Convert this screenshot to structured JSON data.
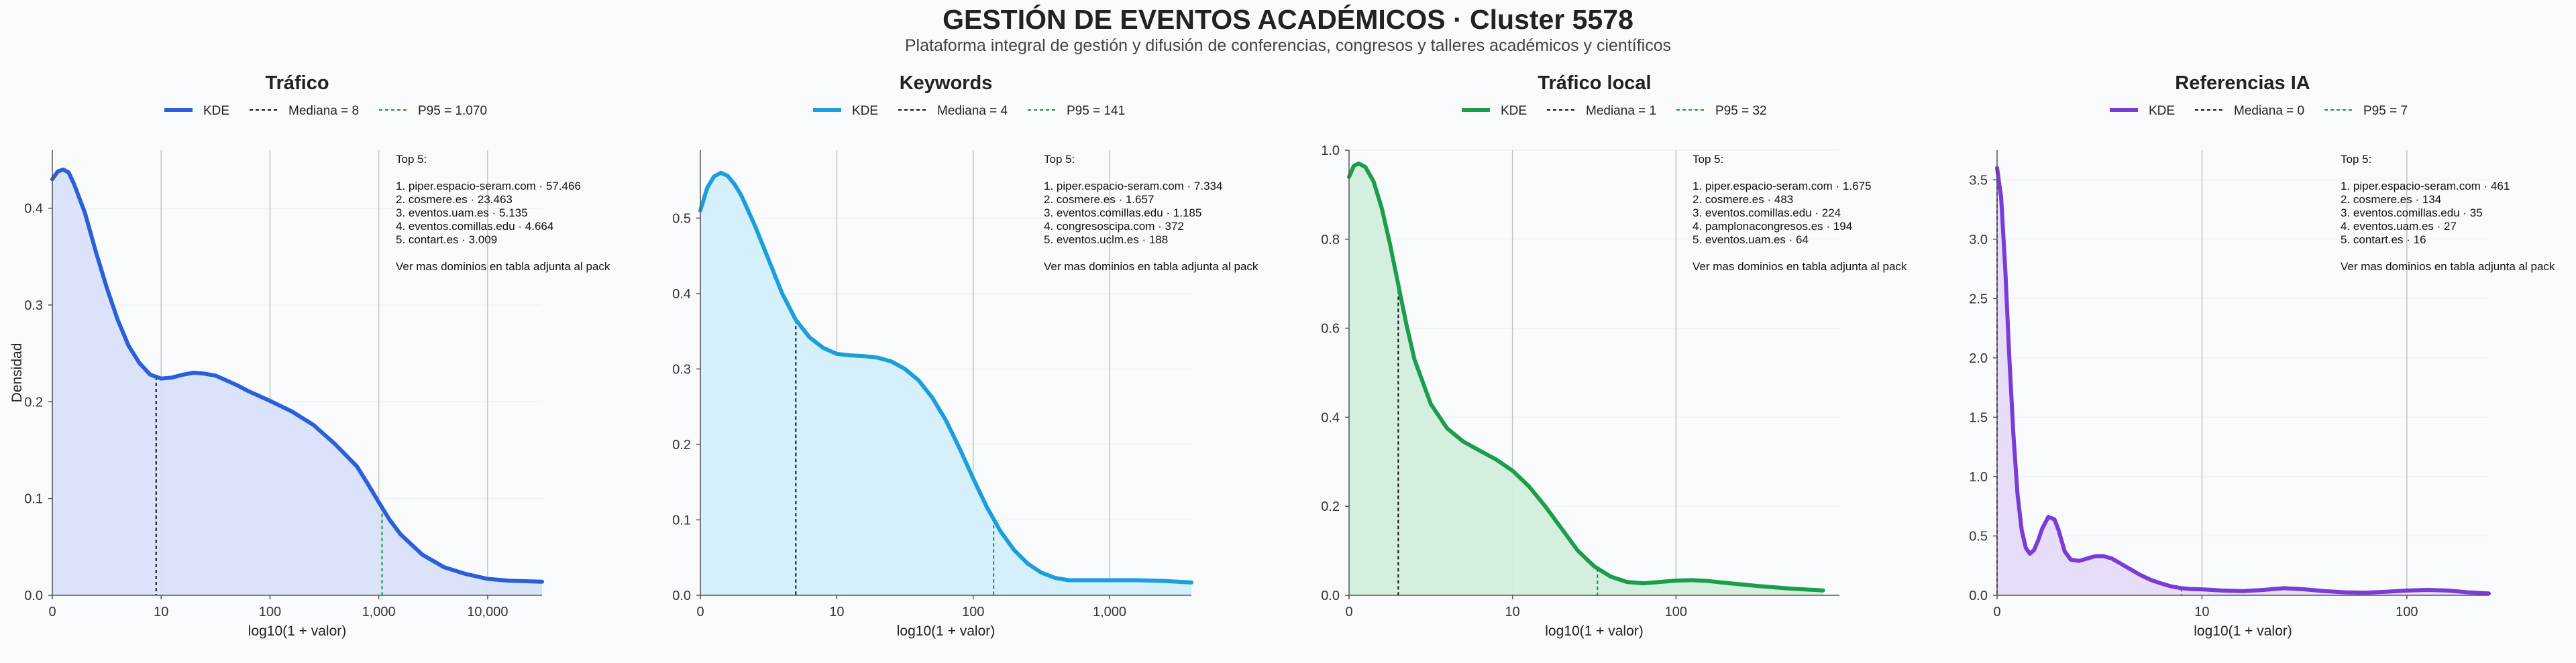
{
  "header": {
    "title": "GESTIÓN DE EVENTOS ACADÉMICOS · Cluster 5578",
    "subtitle": "Plataforma integral de gestión y difusión de conferencias, congresos y talleres académicos y científicos"
  },
  "chart_data": [
    {
      "type": "area",
      "title": "Tráfico",
      "xlabel": "log10(1 + valor)",
      "ylabel": "Densidad",
      "color": "#2b5fd9",
      "fill": "#d8e2fa",
      "xlim": [
        0,
        4.5
      ],
      "ylim": [
        0,
        0.46
      ],
      "xticks": [
        0,
        1,
        2,
        3,
        4
      ],
      "xtick_labels": [
        "0",
        "10",
        "100",
        "1,000",
        "10,000"
      ],
      "yticks": [
        0,
        0.1,
        0.2,
        0.3,
        0.4
      ],
      "ytick_labels": [
        "0.0",
        "0.1",
        "0.2",
        "0.3",
        "0.4"
      ],
      "series": [
        {
          "name": "KDE",
          "x": [
            0,
            0.05,
            0.1,
            0.15,
            0.2,
            0.3,
            0.4,
            0.5,
            0.6,
            0.7,
            0.8,
            0.9,
            1.0,
            1.1,
            1.2,
            1.3,
            1.4,
            1.5,
            1.6,
            1.7,
            1.8,
            1.9,
            2.0,
            2.2,
            2.4,
            2.6,
            2.8,
            2.9,
            3.0,
            3.1,
            3.2,
            3.4,
            3.6,
            3.8,
            4.0,
            4.2,
            4.5
          ],
          "y": [
            0.43,
            0.438,
            0.44,
            0.437,
            0.425,
            0.395,
            0.355,
            0.318,
            0.285,
            0.258,
            0.24,
            0.228,
            0.224,
            0.225,
            0.228,
            0.23,
            0.229,
            0.227,
            0.222,
            0.217,
            0.211,
            0.206,
            0.201,
            0.19,
            0.176,
            0.156,
            0.133,
            0.115,
            0.096,
            0.078,
            0.063,
            0.042,
            0.029,
            0.022,
            0.017,
            0.015,
            0.014
          ]
        }
      ],
      "legend": [
        {
          "label": "KDE",
          "style": "solid"
        },
        {
          "label": "Mediana = 8",
          "style": "dash-black"
        },
        {
          "label": "P95 = 1.070",
          "style": "dash-green"
        }
      ],
      "median_x": 0.954,
      "p95_x": 3.03,
      "annotation": [
        "Top 5:",
        "",
        "1. piper.espacio-seram.com · 57.466",
        "2. cosmere.es · 23.463",
        "3. eventos.uam.es · 5.135",
        "4. eventos.comillas.edu · 4.664",
        "5. contart.es · 3.009",
        "",
        "Ver mas dominios en tabla adjunta al pack"
      ]
    },
    {
      "type": "area",
      "title": "Keywords",
      "xlabel": "log10(1 + valor)",
      "ylabel": "",
      "color": "#1a9fdb",
      "fill": "#d3eefb",
      "xlim": [
        0,
        3.6
      ],
      "ylim": [
        0,
        0.59
      ],
      "xticks": [
        0,
        1,
        2,
        3
      ],
      "xtick_labels": [
        "0",
        "10",
        "100",
        "1,000"
      ],
      "yticks": [
        0,
        0.1,
        0.2,
        0.3,
        0.4,
        0.5
      ],
      "ytick_labels": [
        "0.0",
        "0.1",
        "0.2",
        "0.3",
        "0.4",
        "0.5"
      ],
      "series": [
        {
          "name": "KDE",
          "x": [
            0,
            0.05,
            0.1,
            0.15,
            0.2,
            0.25,
            0.3,
            0.4,
            0.5,
            0.6,
            0.7,
            0.8,
            0.9,
            1.0,
            1.1,
            1.2,
            1.3,
            1.4,
            1.5,
            1.6,
            1.7,
            1.8,
            1.9,
            2.0,
            2.1,
            2.2,
            2.3,
            2.4,
            2.5,
            2.6,
            2.7,
            2.8,
            3.0,
            3.2,
            3.4,
            3.6
          ],
          "y": [
            0.51,
            0.54,
            0.555,
            0.56,
            0.556,
            0.545,
            0.53,
            0.49,
            0.445,
            0.4,
            0.365,
            0.342,
            0.328,
            0.32,
            0.318,
            0.317,
            0.315,
            0.31,
            0.3,
            0.285,
            0.262,
            0.232,
            0.195,
            0.155,
            0.117,
            0.085,
            0.06,
            0.042,
            0.03,
            0.023,
            0.02,
            0.02,
            0.02,
            0.02,
            0.019,
            0.017
          ]
        }
      ],
      "legend": [
        {
          "label": "KDE",
          "style": "solid"
        },
        {
          "label": "Mediana = 4",
          "style": "dash-black"
        },
        {
          "label": "P95 = 141",
          "style": "dash-green"
        }
      ],
      "median_x": 0.7,
      "p95_x": 2.15,
      "annotation": [
        "Top 5:",
        "",
        "1. piper.espacio-seram.com · 7.334",
        "2. cosmere.es · 1.657",
        "3. eventos.comillas.edu · 1.185",
        "4. congresoscipa.com · 372",
        "5. eventos.uclm.es · 188",
        "",
        "Ver mas dominios en tabla adjunta al pack"
      ]
    },
    {
      "type": "area",
      "title": "Tráfico local",
      "xlabel": "log10(1 + valor)",
      "ylabel": "",
      "color": "#1a9e4b",
      "fill": "#d3eedd",
      "xlim": [
        0,
        3.0
      ],
      "ylim": [
        0,
        1.0
      ],
      "xticks": [
        0,
        1,
        2
      ],
      "xtick_labels": [
        "0",
        "10",
        "100"
      ],
      "yticks": [
        0,
        0.2,
        0.4,
        0.6,
        0.8,
        1.0
      ],
      "ytick_labels": [
        "0.0",
        "0.2",
        "0.4",
        "0.6",
        "0.8",
        "1.0"
      ],
      "series": [
        {
          "name": "KDE",
          "x": [
            0,
            0.03,
            0.06,
            0.1,
            0.15,
            0.2,
            0.25,
            0.3,
            0.35,
            0.4,
            0.5,
            0.6,
            0.7,
            0.8,
            0.9,
            1.0,
            1.1,
            1.2,
            1.3,
            1.4,
            1.5,
            1.6,
            1.7,
            1.8,
            1.9,
            2.0,
            2.1,
            2.2,
            2.3,
            2.5,
            2.7,
            2.9
          ],
          "y": [
            0.94,
            0.965,
            0.97,
            0.962,
            0.93,
            0.87,
            0.79,
            0.7,
            0.61,
            0.53,
            0.43,
            0.375,
            0.345,
            0.325,
            0.305,
            0.28,
            0.245,
            0.2,
            0.15,
            0.1,
            0.065,
            0.042,
            0.03,
            0.027,
            0.03,
            0.033,
            0.034,
            0.032,
            0.028,
            0.021,
            0.015,
            0.011
          ]
        }
      ],
      "legend": [
        {
          "label": "KDE",
          "style": "solid"
        },
        {
          "label": "Mediana = 1",
          "style": "dash-black"
        },
        {
          "label": "P95 = 32",
          "style": "dash-green"
        }
      ],
      "median_x": 0.301,
      "p95_x": 1.52,
      "annotation": [
        "Top 5:",
        "",
        "1. piper.espacio-seram.com · 1.675",
        "2. cosmere.es · 483",
        "3. eventos.comillas.edu · 224",
        "4. pamplonacongresos.es · 194",
        "5. eventos.uam.es · 64",
        "",
        "Ver mas dominios en tabla adjunta al pack"
      ]
    },
    {
      "type": "area",
      "title": "Referencias IA",
      "xlabel": "log10(1 + valor)",
      "ylabel": "",
      "color": "#7a3cd6",
      "fill": "#e6dbf8",
      "xlim": [
        0,
        2.4
      ],
      "ylim": [
        0,
        3.75
      ],
      "xticks": [
        0,
        1,
        2
      ],
      "xtick_labels": [
        "0",
        "10",
        "100"
      ],
      "yticks": [
        0,
        0.5,
        1.0,
        1.5,
        2.0,
        2.5,
        3.0,
        3.5
      ],
      "ytick_labels": [
        "0.0",
        "0.5",
        "1.0",
        "1.5",
        "2.0",
        "2.5",
        "3.0",
        "3.5"
      ],
      "series": [
        {
          "name": "KDE",
          "x": [
            0,
            0.02,
            0.04,
            0.06,
            0.08,
            0.1,
            0.12,
            0.14,
            0.16,
            0.18,
            0.2,
            0.22,
            0.25,
            0.28,
            0.3,
            0.33,
            0.36,
            0.4,
            0.44,
            0.48,
            0.52,
            0.56,
            0.6,
            0.65,
            0.7,
            0.75,
            0.8,
            0.85,
            0.9,
            0.95,
            1.0,
            1.1,
            1.2,
            1.3,
            1.4,
            1.5,
            1.6,
            1.7,
            1.8,
            1.9,
            2.0,
            2.1,
            2.2,
            2.3,
            2.4
          ],
          "y": [
            3.6,
            3.35,
            2.75,
            2.0,
            1.35,
            0.85,
            0.55,
            0.4,
            0.35,
            0.38,
            0.46,
            0.56,
            0.66,
            0.64,
            0.55,
            0.37,
            0.3,
            0.29,
            0.31,
            0.33,
            0.33,
            0.31,
            0.27,
            0.22,
            0.17,
            0.13,
            0.1,
            0.075,
            0.06,
            0.052,
            0.05,
            0.04,
            0.035,
            0.045,
            0.06,
            0.05,
            0.035,
            0.025,
            0.022,
            0.03,
            0.04,
            0.045,
            0.04,
            0.025,
            0.015
          ]
        }
      ],
      "legend": [
        {
          "label": "KDE",
          "style": "solid"
        },
        {
          "label": "Mediana = 0",
          "style": "dash-black"
        },
        {
          "label": "P95 = 7",
          "style": "dash-green"
        }
      ],
      "median_x": 0.0,
      "p95_x": 0.9,
      "annotation": [
        "Top 5:",
        "",
        "1. piper.espacio-seram.com · 461",
        "2. cosmere.es · 134",
        "3. eventos.comillas.edu · 35",
        "4. eventos.uam.es · 27",
        "5. contart.es · 16",
        "",
        "Ver mas dominios en tabla adjunta al pack"
      ]
    }
  ]
}
